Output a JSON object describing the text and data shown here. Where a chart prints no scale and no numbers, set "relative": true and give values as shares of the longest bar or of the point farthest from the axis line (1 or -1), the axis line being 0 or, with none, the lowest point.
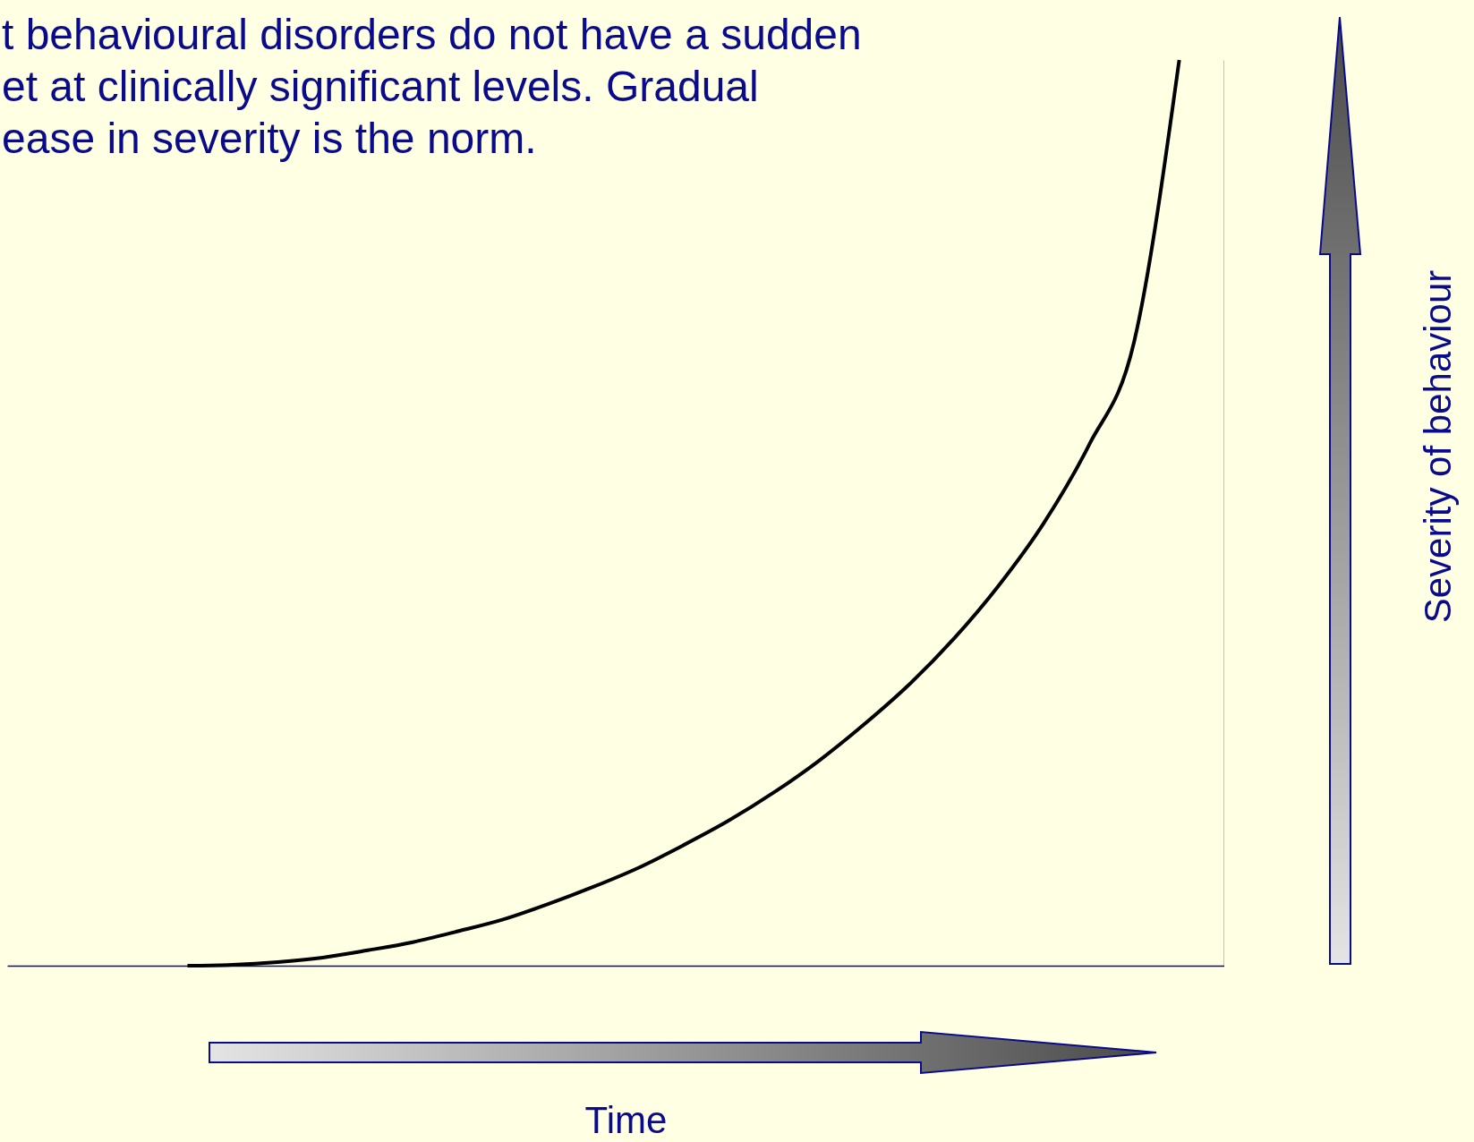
{
  "chart_data": {
    "type": "line",
    "title": "t behavioural disorders do not have a sudden\net at clinically significant levels. Gradual\nease in severity is the norm.",
    "xlabel": "Time",
    "annotations": [
      "Severity of behaviour"
    ],
    "relative": true,
    "tick_labels": false,
    "categories": [
      null,
      null,
      null,
      null,
      null,
      null,
      null,
      null,
      null,
      null,
      null,
      null,
      null,
      null,
      null,
      null,
      null,
      null,
      null,
      null,
      null,
      null,
      null,
      null,
      null,
      null,
      null,
      null
    ],
    "series": [
      {
        "color": "#000000",
        "values": [
          null,
          null,
          null,
          null,
          0,
          0.001,
          0.004,
          0.009,
          0.017,
          0.026,
          0.038,
          0.051,
          0.068,
          0.087,
          0.108,
          0.133,
          0.16,
          0.191,
          0.226,
          0.266,
          0.31,
          0.361,
          0.42,
          0.489,
          0.575,
          0.689,
          1,
          null
        ]
      }
    ]
  }
}
